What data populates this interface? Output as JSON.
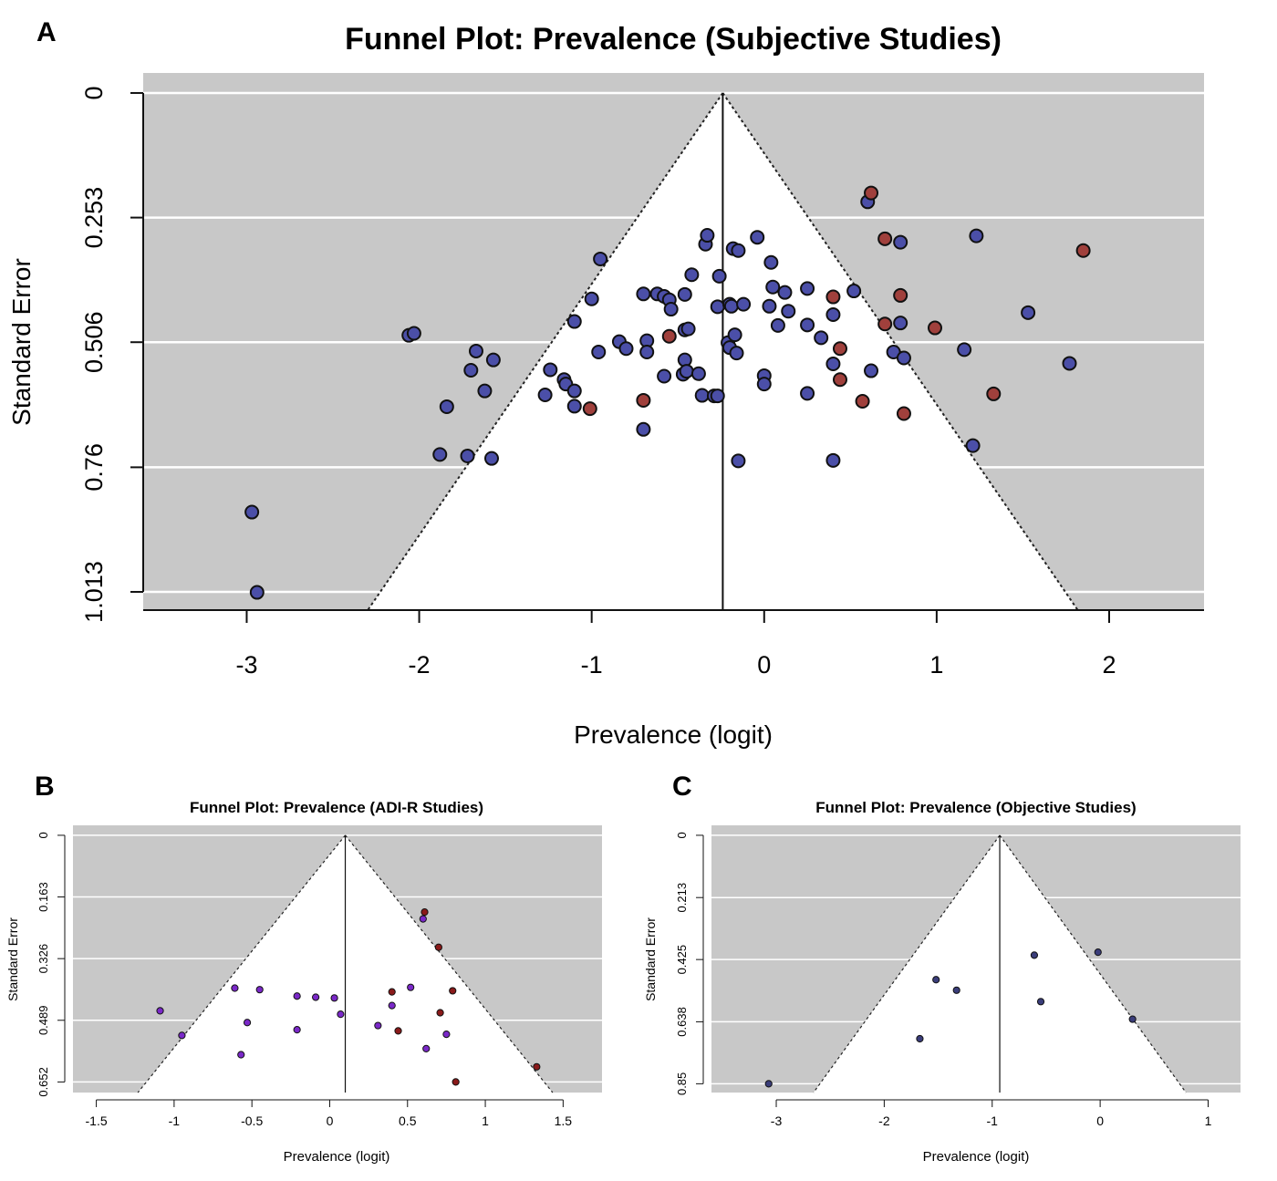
{
  "colors": {
    "panel_bg": "#c8c8c8",
    "funnel_fill": "#ffffff",
    "gridline": "#ffffff",
    "point_blue": "#4b4fa8",
    "point_red": "#a0403c",
    "point_purple": "#7a28c8",
    "point_darkred": "#8a1a1a",
    "point_navy": "#3a3d7a",
    "outline": "#111111"
  },
  "chart_data": [
    {
      "panel": "A",
      "type": "scatter",
      "subtype": "funnel",
      "title": "Funnel Plot: Prevalence (Subjective Studies)",
      "xlabel": "Prevalence (logit)",
      "ylabel": "Standard Error",
      "xlim": [
        -3.6,
        2.55
      ],
      "ylim": [
        0,
        1.05
      ],
      "y_reversed": true,
      "xticks": [
        -3,
        -2,
        -1,
        0,
        1,
        2
      ],
      "yticks": [
        0,
        0.253,
        0.506,
        0.76,
        1.013
      ],
      "yticklabels": [
        "0",
        "0.253",
        "0.506",
        "0.76",
        "1.013"
      ],
      "center": -0.24,
      "funnel_z": 1.96,
      "grid": true,
      "series": [
        {
          "color_key": "point_blue",
          "points": [
            [
              -2.97,
              0.851
            ],
            [
              -2.94,
              1.014
            ],
            [
              -2.06,
              0.492
            ],
            [
              -2.03,
              0.488
            ],
            [
              -1.88,
              0.734
            ],
            [
              -1.84,
              0.637
            ],
            [
              -1.72,
              0.737
            ],
            [
              -1.7,
              0.563
            ],
            [
              -1.67,
              0.524
            ],
            [
              -1.62,
              0.605
            ],
            [
              -1.58,
              0.742
            ],
            [
              -1.57,
              0.542
            ],
            [
              -1.27,
              0.613
            ],
            [
              -1.24,
              0.562
            ],
            [
              -1.16,
              0.582
            ],
            [
              -1.15,
              0.591
            ],
            [
              -1.1,
              0.605
            ],
            [
              -1.1,
              0.636
            ],
            [
              -1.1,
              0.464
            ],
            [
              -1.0,
              0.418
            ],
            [
              -0.96,
              0.526
            ],
            [
              -0.95,
              0.337
            ],
            [
              -0.84,
              0.505
            ],
            [
              -0.8,
              0.519
            ],
            [
              -0.7,
              0.408
            ],
            [
              -0.7,
              0.683
            ],
            [
              -0.68,
              0.503
            ],
            [
              -0.68,
              0.526
            ],
            [
              -0.62,
              0.408
            ],
            [
              -0.58,
              0.575
            ],
            [
              -0.58,
              0.413
            ],
            [
              -0.55,
              0.42
            ],
            [
              -0.54,
              0.439
            ],
            [
              -0.47,
              0.571
            ],
            [
              -0.46,
              0.481
            ],
            [
              -0.46,
              0.409
            ],
            [
              -0.44,
              0.479
            ],
            [
              -0.46,
              0.542
            ],
            [
              -0.45,
              0.565
            ],
            [
              -0.42,
              0.369
            ],
            [
              -0.38,
              0.57
            ],
            [
              -0.36,
              0.614
            ],
            [
              -0.34,
              0.307
            ],
            [
              -0.33,
              0.289
            ],
            [
              -0.29,
              0.615
            ],
            [
              -0.27,
              0.615
            ],
            [
              -0.27,
              0.434
            ],
            [
              -0.26,
              0.372
            ],
            [
              -0.21,
              0.507
            ],
            [
              -0.2,
              0.429
            ],
            [
              -0.2,
              0.517
            ],
            [
              -0.19,
              0.433
            ],
            [
              -0.18,
              0.316
            ],
            [
              -0.17,
              0.491
            ],
            [
              -0.16,
              0.528
            ],
            [
              -0.15,
              0.32
            ],
            [
              -0.15,
              0.747
            ],
            [
              -0.12,
              0.429
            ],
            [
              -0.04,
              0.293
            ],
            [
              0.0,
              0.574
            ],
            [
              0.0,
              0.591
            ],
            [
              0.03,
              0.433
            ],
            [
              0.04,
              0.344
            ],
            [
              0.05,
              0.394
            ],
            [
              0.08,
              0.472
            ],
            [
              0.12,
              0.405
            ],
            [
              0.14,
              0.443
            ],
            [
              0.25,
              0.61
            ],
            [
              0.25,
              0.397
            ],
            [
              0.25,
              0.471
            ],
            [
              0.33,
              0.497
            ],
            [
              0.4,
              0.746
            ],
            [
              0.4,
              0.45
            ],
            [
              0.4,
              0.55
            ],
            [
              0.52,
              0.402
            ],
            [
              0.6,
              0.221
            ],
            [
              0.62,
              0.564
            ],
            [
              0.75,
              0.526
            ],
            [
              0.79,
              0.467
            ],
            [
              0.79,
              0.303
            ],
            [
              0.81,
              0.538
            ],
            [
              1.16,
              0.521
            ],
            [
              1.21,
              0.716
            ],
            [
              1.23,
              0.29
            ],
            [
              1.53,
              0.446
            ],
            [
              1.77,
              0.549
            ]
          ]
        },
        {
          "color_key": "point_red",
          "points": [
            [
              -1.01,
              0.641
            ],
            [
              -0.7,
              0.624
            ],
            [
              -0.55,
              0.494
            ],
            [
              0.4,
              0.414
            ],
            [
              0.44,
              0.519
            ],
            [
              0.44,
              0.582
            ],
            [
              0.57,
              0.626
            ],
            [
              0.62,
              0.203
            ],
            [
              0.7,
              0.296
            ],
            [
              0.7,
              0.469
            ],
            [
              0.79,
              0.411
            ],
            [
              0.81,
              0.651
            ],
            [
              0.99,
              0.477
            ],
            [
              1.33,
              0.611
            ],
            [
              1.85,
              0.32
            ]
          ]
        }
      ]
    },
    {
      "panel": "B",
      "type": "scatter",
      "subtype": "funnel",
      "title": "Funnel Plot: Prevalence (ADI-R Studies)",
      "xlabel": "Prevalence (logit)",
      "ylabel": "Standard Error",
      "xlim": [
        -1.65,
        1.75
      ],
      "ylim": [
        0,
        0.68
      ],
      "y_reversed": true,
      "xticks": [
        -1.5,
        -1,
        -0.5,
        0,
        0.5,
        1,
        1.5
      ],
      "xticklabels": [
        "-1.5",
        "-1",
        "-0.5",
        "0",
        "0.5",
        "1",
        "1.5"
      ],
      "yticks": [
        0,
        0.163,
        0.326,
        0.489,
        0.652
      ],
      "yticklabels": [
        "0",
        "0.163",
        "0.326",
        "0.489",
        "0.652"
      ],
      "center": 0.1,
      "funnel_z": 1.96,
      "grid": true,
      "series": [
        {
          "color_key": "point_purple",
          "points": [
            [
              -1.09,
              0.464
            ],
            [
              -0.95,
              0.529
            ],
            [
              -0.61,
              0.404
            ],
            [
              -0.57,
              0.58
            ],
            [
              -0.53,
              0.495
            ],
            [
              -0.45,
              0.408
            ],
            [
              -0.21,
              0.425
            ],
            [
              -0.21,
              0.514
            ],
            [
              -0.09,
              0.428
            ],
            [
              0.03,
              0.43
            ],
            [
              0.07,
              0.473
            ],
            [
              0.31,
              0.503
            ],
            [
              0.4,
              0.45
            ],
            [
              0.52,
              0.402
            ],
            [
              0.6,
              0.221
            ],
            [
              0.62,
              0.564
            ],
            [
              0.75,
              0.526
            ]
          ]
        },
        {
          "color_key": "point_darkred",
          "points": [
            [
              0.4,
              0.414
            ],
            [
              0.44,
              0.517
            ],
            [
              0.61,
              0.203
            ],
            [
              0.7,
              0.296
            ],
            [
              0.71,
              0.469
            ],
            [
              0.79,
              0.411
            ],
            [
              0.81,
              0.652
            ],
            [
              1.33,
              0.612
            ]
          ]
        }
      ]
    },
    {
      "panel": "C",
      "type": "scatter",
      "subtype": "funnel",
      "title": "Funnel Plot: Prevalence (Objective Studies)",
      "xlabel": "Prevalence (logit)",
      "ylabel": "Standard Error",
      "xlim": [
        -3.6,
        1.3
      ],
      "ylim": [
        0,
        0.88
      ],
      "y_reversed": true,
      "xticks": [
        -3,
        -2,
        -1,
        0,
        1
      ],
      "yticks": [
        0,
        0.213,
        0.425,
        0.638,
        0.85
      ],
      "yticklabels": [
        "0",
        "0.213",
        "0.425",
        "0.638",
        "0.85"
      ],
      "center": -0.93,
      "funnel_z": 1.96,
      "grid": true,
      "series": [
        {
          "color_key": "point_navy",
          "points": [
            [
              -3.07,
              0.85
            ],
            [
              -1.67,
              0.696
            ],
            [
              -1.52,
              0.494
            ],
            [
              -1.33,
              0.53
            ],
            [
              -0.61,
              0.41
            ],
            [
              -0.55,
              0.569
            ],
            [
              -0.02,
              0.4
            ],
            [
              0.3,
              0.629
            ]
          ]
        }
      ]
    }
  ],
  "panel_letters": [
    "A",
    "B",
    "C"
  ]
}
